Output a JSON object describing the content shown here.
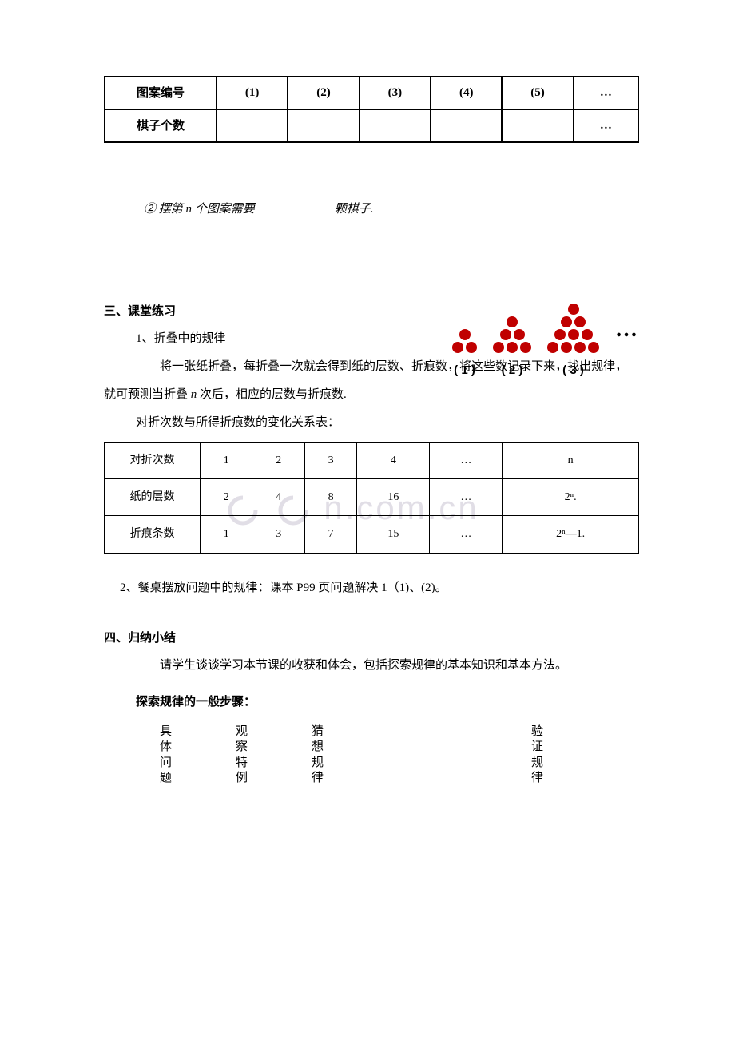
{
  "table1": {
    "row1_label": "图案编号",
    "row1_cells": [
      "(1)",
      "(2)",
      "(3)",
      "(4)",
      "(5)",
      "…"
    ],
    "row2_label": "棋子个数",
    "row2_cells": [
      "",
      "",
      "",
      "",
      "",
      "…"
    ]
  },
  "question2": {
    "prefix": "② 摆第 ",
    "var": "n",
    "mid": " 个图案需要",
    "suffix": "颗棋子."
  },
  "figure": {
    "labels": [
      "( 1 )",
      "( 2 )",
      "( 3 )"
    ],
    "dot_color": "#c00000",
    "ellipsis": "…"
  },
  "section3": {
    "title": "三、课堂练习",
    "item1_title": "1、折叠中的规律",
    "item1_p1_a": "将一张纸折叠，每折叠一次就会得到纸的",
    "item1_p1_u1": "层数",
    "item1_p1_sep": "、",
    "item1_p1_u2": "折痕数",
    "item1_p1_b": "，将这些数记录下来，找出规律，",
    "item1_p2_a": "就可预测当折叠 ",
    "item1_p2_var": "n",
    "item1_p2_b": " 次后，相应的层数与折痕数.",
    "item1_caption": "对折次数与所得折痕数的变化关系表："
  },
  "watermark_text": "n.com.cn",
  "table2": {
    "headers": [
      "对折次数",
      "1",
      "2",
      "3",
      "4",
      "…",
      "n"
    ],
    "row1": [
      "纸的层数",
      "2",
      "4",
      "8",
      "16",
      "…",
      "2ⁿ."
    ],
    "row2": [
      "折痕条数",
      "1",
      "3",
      "7",
      "15",
      "…",
      "2ⁿ—1."
    ]
  },
  "item2": "2、餐桌摆放问题中的规律：课本 P99 页问题解决 1（1)、(2)。",
  "section4": {
    "title": "四、归纳小结",
    "p1": "请学生谈谈学习本节课的收获和体会，包括探索规律的基本知识和基本方法。",
    "subtitle": "探索规律的一般步骤：",
    "steps": [
      "具体问题",
      "观察特例",
      "猜想规律",
      "验证规律"
    ]
  }
}
